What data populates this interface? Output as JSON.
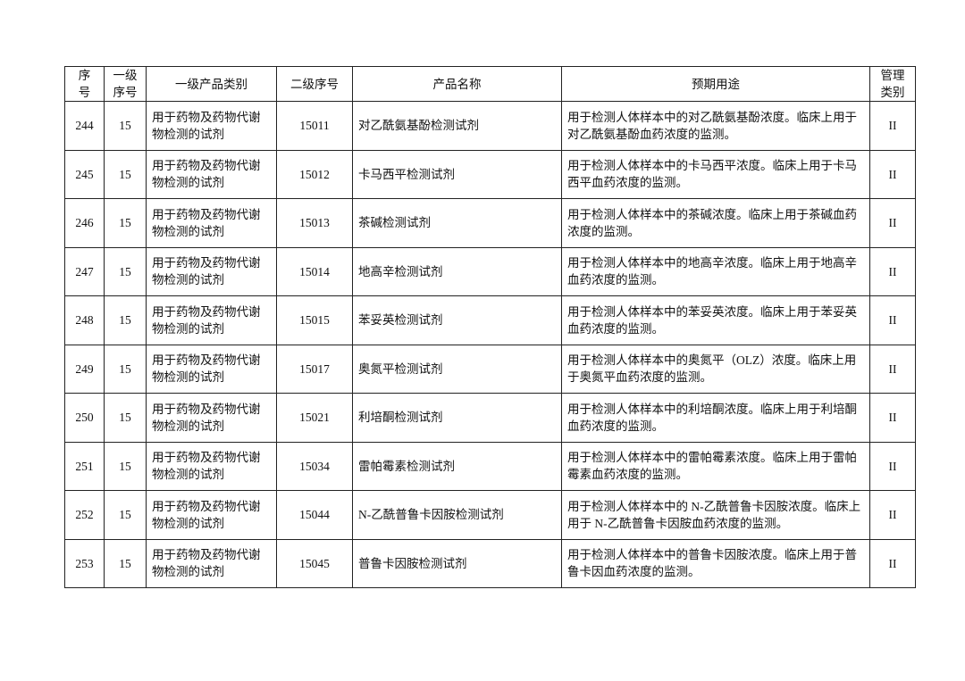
{
  "headers": [
    "序号",
    "一级序号",
    "一级产品类别",
    "二级序号",
    "产品名称",
    "预期用途",
    "管理类别"
  ],
  "header_lines": [
    [
      "序",
      "号"
    ],
    [
      "一级",
      "序号"
    ],
    [
      "一级产品类别"
    ],
    [
      "二级序号"
    ],
    [
      "产品名称"
    ],
    [
      "预期用途"
    ],
    [
      "管理",
      "类别"
    ]
  ],
  "rows": [
    {
      "no": "244",
      "l1": "15",
      "cat": "用于药物及药物代谢物检测的试剂",
      "l2": "15011",
      "name": "对乙酰氨基酚检测试剂",
      "use": "用于检测人体样本中的对乙酰氨基酚浓度。临床上用于对乙酰氨基酚血药浓度的监测。",
      "class": "II"
    },
    {
      "no": "245",
      "l1": "15",
      "cat": "用于药物及药物代谢物检测的试剂",
      "l2": "15012",
      "name": "卡马西平检测试剂",
      "use": "用于检测人体样本中的卡马西平浓度。临床上用于卡马西平血药浓度的监测。",
      "class": "II"
    },
    {
      "no": "246",
      "l1": "15",
      "cat": "用于药物及药物代谢物检测的试剂",
      "l2": "15013",
      "name": "茶碱检测试剂",
      "use": "用于检测人体样本中的茶碱浓度。临床上用于茶碱血药浓度的监测。",
      "class": "II"
    },
    {
      "no": "247",
      "l1": "15",
      "cat": "用于药物及药物代谢物检测的试剂",
      "l2": "15014",
      "name": "地高辛检测试剂",
      "use": "用于检测人体样本中的地高辛浓度。临床上用于地高辛血药浓度的监测。",
      "class": "II"
    },
    {
      "no": "248",
      "l1": "15",
      "cat": "用于药物及药物代谢物检测的试剂",
      "l2": "15015",
      "name": "苯妥英检测试剂",
      "use": "用于检测人体样本中的苯妥英浓度。临床上用于苯妥英血药浓度的监测。",
      "class": "II"
    },
    {
      "no": "249",
      "l1": "15",
      "cat": "用于药物及药物代谢物检测的试剂",
      "l2": "15017",
      "name": "奥氮平检测试剂",
      "use": "用于检测人体样本中的奥氮平（OLZ）浓度。临床上用于奥氮平血药浓度的监测。",
      "class": "II"
    },
    {
      "no": "250",
      "l1": "15",
      "cat": "用于药物及药物代谢物检测的试剂",
      "l2": "15021",
      "name": "利培酮检测试剂",
      "use": "用于检测人体样本中的利培酮浓度。临床上用于利培酮血药浓度的监测。",
      "class": "II"
    },
    {
      "no": "251",
      "l1": "15",
      "cat": "用于药物及药物代谢物检测的试剂",
      "l2": "15034",
      "name": "雷帕霉素检测试剂",
      "use": "用于检测人体样本中的雷帕霉素浓度。临床上用于雷帕霉素血药浓度的监测。",
      "class": "II"
    },
    {
      "no": "252",
      "l1": "15",
      "cat": "用于药物及药物代谢物检测的试剂",
      "l2": "15044",
      "name": "N-乙酰普鲁卡因胺检测试剂",
      "use": "用于检测人体样本中的 N-乙酰普鲁卡因胺浓度。临床上用于 N-乙酰普鲁卡因胺血药浓度的监测。",
      "class": "II"
    },
    {
      "no": "253",
      "l1": "15",
      "cat": "用于药物及药物代谢物检测的试剂",
      "l2": "15045",
      "name": "普鲁卡因胺检测试剂",
      "use": "用于检测人体样本中的普鲁卡因胺浓度。临床上用于普鲁卡因血药浓度的监测。",
      "class": "II"
    }
  ]
}
